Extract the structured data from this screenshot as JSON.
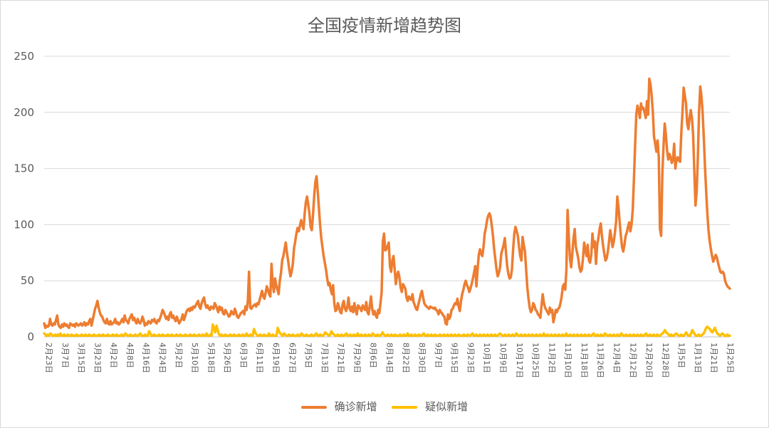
{
  "chart_data": {
    "type": "line",
    "title": "全国疫情新增趋势图",
    "xlabel": "",
    "ylabel": "",
    "ylim": [
      0,
      250
    ],
    "yticks": [
      0,
      50,
      100,
      150,
      200,
      250
    ],
    "grid": true,
    "legend": "bottom",
    "series": [
      {
        "name": "确诊新增",
        "color": "#ED7D31",
        "values": [
          12,
          8,
          10,
          9,
          10,
          16,
          11,
          10,
          12,
          11,
          15,
          19,
          11,
          9,
          8,
          11,
          9,
          12,
          10,
          11,
          9,
          8,
          12,
          11,
          10,
          11,
          9,
          12,
          11,
          10,
          11,
          12,
          10,
          11,
          13,
          10,
          12,
          11,
          14,
          16,
          10,
          15,
          20,
          25,
          28,
          32,
          26,
          22,
          19,
          18,
          15,
          13,
          12,
          16,
          12,
          11,
          14,
          11,
          12,
          13,
          16,
          12,
          13,
          11,
          12,
          14,
          16,
          13,
          19,
          15,
          14,
          12,
          16,
          18,
          20,
          15,
          17,
          14,
          12,
          16,
          13,
          12,
          14,
          18,
          15,
          10,
          12,
          11,
          14,
          13,
          12,
          15,
          14,
          16,
          13,
          12,
          15,
          14,
          17,
          20,
          24,
          22,
          19,
          16,
          18,
          15,
          20,
          22,
          17,
          19,
          16,
          14,
          18,
          15,
          12,
          14,
          16,
          20,
          15,
          18,
          22,
          24,
          25,
          23,
          26,
          24,
          27,
          26,
          28,
          30,
          32,
          27,
          25,
          30,
          33,
          35,
          29,
          26,
          28,
          25,
          24,
          27,
          26,
          25,
          30,
          28,
          25,
          22,
          27,
          24,
          26,
          21,
          20,
          24,
          22,
          20,
          18,
          19,
          23,
          21,
          20,
          25,
          22,
          18,
          17,
          19,
          21,
          22,
          23,
          20,
          27,
          24,
          32,
          58,
          26,
          25,
          27,
          28,
          29,
          27,
          30,
          29,
          33,
          37,
          41,
          36,
          34,
          39,
          45,
          42,
          38,
          36,
          65,
          47,
          40,
          52,
          46,
          42,
          38,
          50,
          57,
          68,
          72,
          78,
          84,
          75,
          68,
          60,
          54,
          58,
          65,
          79,
          85,
          92,
          97,
          94,
          99,
          104,
          100,
          96,
          110,
          120,
          125,
          118,
          110,
          98,
          95,
          108,
          125,
          138,
          143,
          130,
          115,
          100,
          88,
          80,
          72,
          66,
          60,
          52,
          46,
          48,
          42,
          38,
          46,
          30,
          23,
          24,
          30,
          27,
          22,
          21,
          29,
          32,
          25,
          23,
          27,
          35,
          25,
          23,
          27,
          22,
          30,
          24,
          20,
          28,
          27,
          25,
          23,
          28,
          26,
          24,
          31,
          22,
          20,
          28,
          36,
          25,
          20,
          23,
          19,
          17,
          24,
          21,
          30,
          40,
          85,
          92,
          77,
          78,
          81,
          84,
          63,
          58,
          68,
          72,
          60,
          47,
          55,
          58,
          53,
          44,
          40,
          47,
          45,
          43,
          35,
          32,
          36,
          34,
          33,
          38,
          31,
          28,
          25,
          24,
          29,
          33,
          38,
          41,
          35,
          30,
          28,
          27,
          26,
          25,
          27,
          26,
          26,
          25,
          26,
          24,
          23,
          20,
          24,
          22,
          21,
          19,
          18,
          12,
          11,
          20,
          16,
          18,
          24,
          25,
          28,
          30,
          29,
          34,
          27,
          23,
          32,
          38,
          42,
          47,
          50,
          46,
          44,
          40,
          43,
          47,
          52,
          57,
          63,
          45,
          60,
          73,
          78,
          74,
          72,
          80,
          92,
          97,
          104,
          108,
          110,
          107,
          99,
          90,
          78,
          69,
          60,
          54,
          57,
          62,
          74,
          78,
          82,
          88,
          75,
          63,
          56,
          52,
          53,
          60,
          78,
          92,
          98,
          94,
          90,
          80,
          72,
          68,
          89,
          82,
          76,
          60,
          44,
          34,
          26,
          22,
          24,
          30,
          28,
          24,
          23,
          20,
          19,
          17,
          28,
          38,
          30,
          26,
          24,
          22,
          20,
          26,
          22,
          24,
          13,
          18,
          24,
          22,
          25,
          26,
          30,
          36,
          45,
          47,
          42,
          60,
          113,
          90,
          70,
          62,
          74,
          88,
          96,
          80,
          75,
          70,
          62,
          58,
          60,
          70,
          84,
          78,
          72,
          82,
          68,
          66,
          73,
          92,
          80,
          85,
          65,
          82,
          88,
          96,
          101,
          90,
          81,
          74,
          68,
          70,
          76,
          85,
          95,
          88,
          80,
          85,
          93,
          103,
          125,
          115,
          102,
          90,
          80,
          76,
          82,
          90,
          93,
          98,
          102,
          94,
          100,
          113,
          140,
          170,
          198,
          206,
          202,
          195,
          208,
          203,
          204,
          200,
          195,
          210,
          198,
          230,
          225,
          215,
          200,
          178,
          172,
          165,
          175,
          160,
          96,
          90,
          145,
          170,
          190,
          180,
          166,
          158,
          163,
          160,
          155,
          158,
          172,
          150,
          158,
          160,
          157,
          156,
          181,
          200,
          222,
          215,
          208,
          190,
          185,
          195,
          202,
          195,
          180,
          148,
          117,
          130,
          160,
          200,
          223,
          215,
          200,
          178,
          152,
          130,
          110,
          95,
          85,
          78,
          72,
          67,
          70,
          73,
          71,
          66,
          62,
          58,
          57,
          58,
          56,
          50,
          47,
          45,
          44,
          43
        ]
      },
      {
        "name": "疑似新增",
        "color": "#FFC000",
        "values": [
          3,
          2,
          1,
          2,
          1,
          3,
          2,
          1,
          1,
          2,
          1,
          2,
          1,
          3,
          1,
          1,
          2,
          1,
          1,
          2,
          1,
          1,
          2,
          1,
          1,
          1,
          2,
          1,
          1,
          1,
          2,
          1,
          1,
          2,
          1,
          1,
          2,
          1,
          1,
          1,
          2,
          1,
          1,
          1,
          2,
          1,
          1,
          2,
          1,
          1,
          1,
          2,
          1,
          1,
          1,
          2,
          1,
          1,
          2,
          1,
          1,
          1,
          2,
          1,
          1,
          3,
          2,
          1,
          1,
          2,
          1,
          1,
          1,
          2,
          1,
          1,
          2,
          3,
          1,
          1,
          1,
          2,
          1,
          1,
          5,
          3,
          1,
          1,
          2,
          1,
          1,
          1,
          2,
          1,
          1,
          2,
          1,
          1,
          1,
          2,
          1,
          1,
          2,
          1,
          1,
          1,
          2,
          1,
          1,
          2,
          1,
          1,
          1,
          2,
          1,
          1,
          1,
          2,
          1,
          1,
          2,
          1,
          1,
          1,
          2,
          1,
          1,
          2,
          1,
          1,
          3,
          1,
          1,
          2,
          1,
          11,
          8,
          4,
          10,
          6,
          2,
          1,
          2,
          1,
          1,
          2,
          1,
          1,
          1,
          2,
          1,
          1,
          2,
          1,
          1,
          1,
          2,
          1,
          1,
          2,
          1,
          1,
          3,
          1,
          1,
          2,
          1,
          1,
          7,
          4,
          2,
          1,
          1,
          2,
          1,
          1,
          2,
          1,
          1,
          1,
          3,
          1,
          1,
          2,
          1,
          1,
          1,
          8,
          5,
          3,
          2,
          1,
          3,
          2,
          1,
          1,
          2,
          1,
          1,
          2,
          1,
          1,
          1,
          2,
          1,
          1,
          3,
          2,
          1,
          1,
          2,
          1,
          1,
          1,
          2,
          1,
          1,
          2,
          3,
          1,
          1,
          2,
          1,
          1,
          2,
          4,
          3,
          2,
          1,
          2,
          5,
          3,
          2,
          1,
          1,
          2,
          1,
          1,
          2,
          1,
          1,
          2,
          3,
          1,
          1,
          2,
          1,
          1,
          2,
          1,
          1,
          3,
          1,
          1,
          2,
          1,
          1,
          2,
          1,
          1,
          2,
          1,
          1,
          3,
          2,
          1,
          1,
          2,
          1,
          1,
          2,
          4,
          2,
          1,
          1,
          2,
          1,
          1,
          2,
          1,
          1,
          2,
          1,
          1,
          1,
          2,
          1,
          1,
          2,
          1,
          1,
          3,
          1,
          1,
          2,
          1,
          1,
          2,
          1,
          1,
          2,
          1,
          1,
          2,
          3,
          1,
          1,
          2,
          1,
          1,
          2,
          1,
          1,
          2,
          1,
          1,
          1,
          2,
          1,
          1,
          2,
          1,
          1,
          2,
          1,
          1,
          2,
          1,
          1,
          2,
          1,
          1,
          2,
          1,
          1,
          1,
          2,
          1,
          1,
          2,
          1,
          1,
          2,
          3,
          1,
          1,
          2,
          1,
          1,
          2,
          1,
          1,
          2,
          1,
          1,
          2,
          1,
          1,
          2,
          1,
          1,
          2,
          1,
          1,
          2,
          3,
          2,
          1,
          1,
          2,
          1,
          1,
          2,
          1,
          1,
          2,
          1,
          1,
          3,
          2,
          1,
          1,
          2,
          1,
          1,
          2,
          1,
          1,
          2,
          1,
          1,
          2,
          1,
          1,
          2,
          1,
          1,
          2,
          1,
          1,
          3,
          1,
          1,
          2,
          1,
          1,
          2,
          1,
          1,
          2,
          1,
          1,
          2,
          1,
          1,
          2,
          1,
          1,
          3,
          1,
          1,
          2,
          1,
          1,
          2,
          1,
          1,
          2,
          1,
          1,
          2,
          1,
          1,
          2,
          1,
          1,
          2,
          1,
          1,
          2,
          3,
          1,
          1,
          2,
          1,
          1,
          2,
          1,
          1,
          3,
          2,
          1,
          1,
          2,
          1,
          1,
          2,
          1,
          1,
          2,
          1,
          1,
          3,
          2,
          1,
          1,
          2,
          1,
          1,
          2,
          1,
          1,
          2,
          1,
          1,
          2,
          1,
          1,
          2,
          1,
          1,
          2,
          3,
          1,
          1,
          2,
          1,
          1,
          2,
          1,
          1,
          2,
          1,
          1,
          2,
          3,
          4,
          6,
          4,
          3,
          2,
          1,
          2,
          1,
          1,
          2,
          3,
          2,
          1,
          1,
          2,
          1,
          1,
          2,
          4,
          2,
          1,
          1,
          3,
          6,
          4,
          2,
          1,
          1,
          2,
          1,
          1,
          2,
          3,
          5,
          8,
          9,
          8,
          7,
          5,
          4,
          6,
          8,
          5,
          3,
          2,
          1,
          2,
          3,
          2,
          1,
          1,
          2,
          1,
          1
        ]
      }
    ],
    "x_tick_labels": [
      "2月23日",
      "3月7日",
      "3月15日",
      "3月23日",
      "4月2日",
      "4月8日",
      "4月16日",
      "4月24日",
      "5月2日",
      "5月10日",
      "5月18日",
      "5月26日",
      "6月3日",
      "6月11日",
      "6月19日",
      "6月27日",
      "7月5日",
      "7月13日",
      "7月21日",
      "7月29日",
      "8月6日",
      "8月14日",
      "8月22日",
      "8月30日",
      "9月7日",
      "9月15日",
      "9月23日",
      "10月1日",
      "10月9日",
      "10月17日",
      "10月25日",
      "11月2日",
      "11月10日",
      "11月18日",
      "11月26日",
      "12月4日",
      "12月12日",
      "12月20日",
      "12月28日",
      "1月5日",
      "1月13日",
      "1月21日",
      "1月25日"
    ]
  }
}
